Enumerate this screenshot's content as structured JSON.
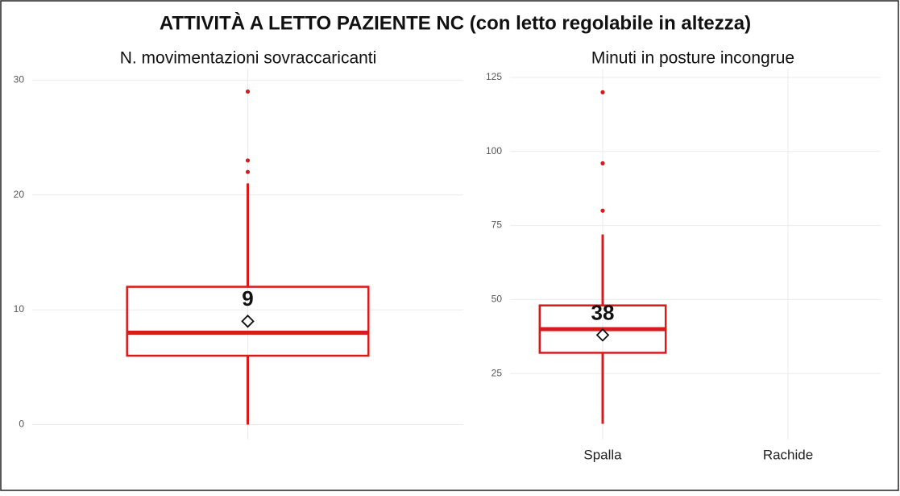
{
  "title": "ATTIVITÀ A LETTO PAZIENTE NC (con letto regolabile in altezza)",
  "chart_data": [
    {
      "type": "box",
      "title": "N. movimentazioni sovraccaricanti",
      "categories": [
        null
      ],
      "color": "#d91a1a",
      "ylim": [
        -1.3,
        31
      ],
      "yticks": [
        0,
        10,
        20,
        30
      ],
      "grid": true,
      "series": [
        {
          "values": [
            {
              "whisker_low": 0,
              "q1": 6,
              "median": 8,
              "q3": 12,
              "whisker_high": 21,
              "mean": 9,
              "outliers": [
                22,
                23,
                29
              ]
            }
          ]
        }
      ]
    },
    {
      "type": "box",
      "title": "Minuti in posture incongrue",
      "categories": [
        "Spalla",
        "Rachide"
      ],
      "color": "#d91a1a",
      "ylim": [
        2.7,
        128
      ],
      "yticks": [
        25,
        50,
        75,
        100,
        125
      ],
      "grid": true,
      "series": [
        {
          "values": [
            {
              "whisker_low": 8,
              "q1": 32,
              "median": 40,
              "q3": 48,
              "whisker_high": 72,
              "mean": 38,
              "outliers": [
                80,
                96,
                120
              ]
            },
            null
          ]
        }
      ]
    }
  ]
}
